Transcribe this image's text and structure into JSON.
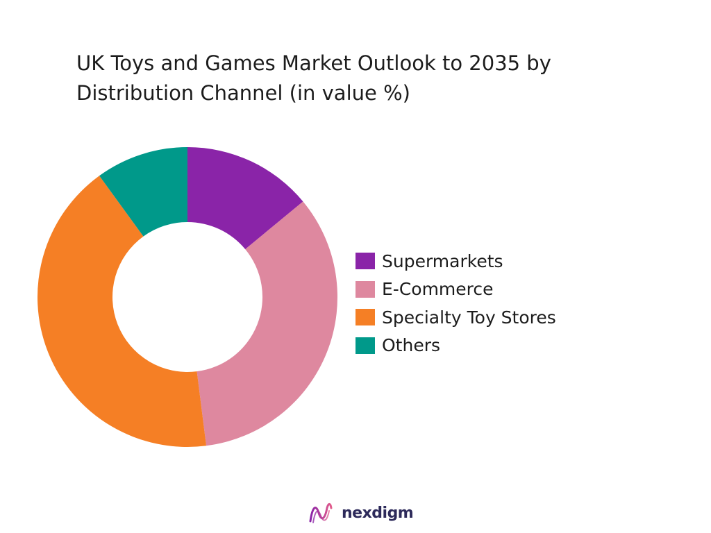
{
  "chart_data": {
    "type": "pie",
    "variant": "donut",
    "title_lines": [
      "UK Toys and Games Market Outlook to 2035 by",
      "Distribution Channel (in value %)"
    ],
    "categories": [
      "Supermarkets",
      "E-Commerce",
      "Specialty Toy Stores",
      "Others"
    ],
    "values": [
      14,
      34,
      42,
      10
    ],
    "unit": "%",
    "colors": [
      "#8a24a8",
      "#de889f",
      "#f57f25",
      "#00998a"
    ],
    "legend_position": "right",
    "start_angle_deg": 0,
    "direction": "clockwise"
  },
  "brand": {
    "name": "nexdigm",
    "logo_icon": "nexdigm-wave-icon",
    "logo_colors": [
      "#8a24a8",
      "#e25c8c"
    ]
  }
}
